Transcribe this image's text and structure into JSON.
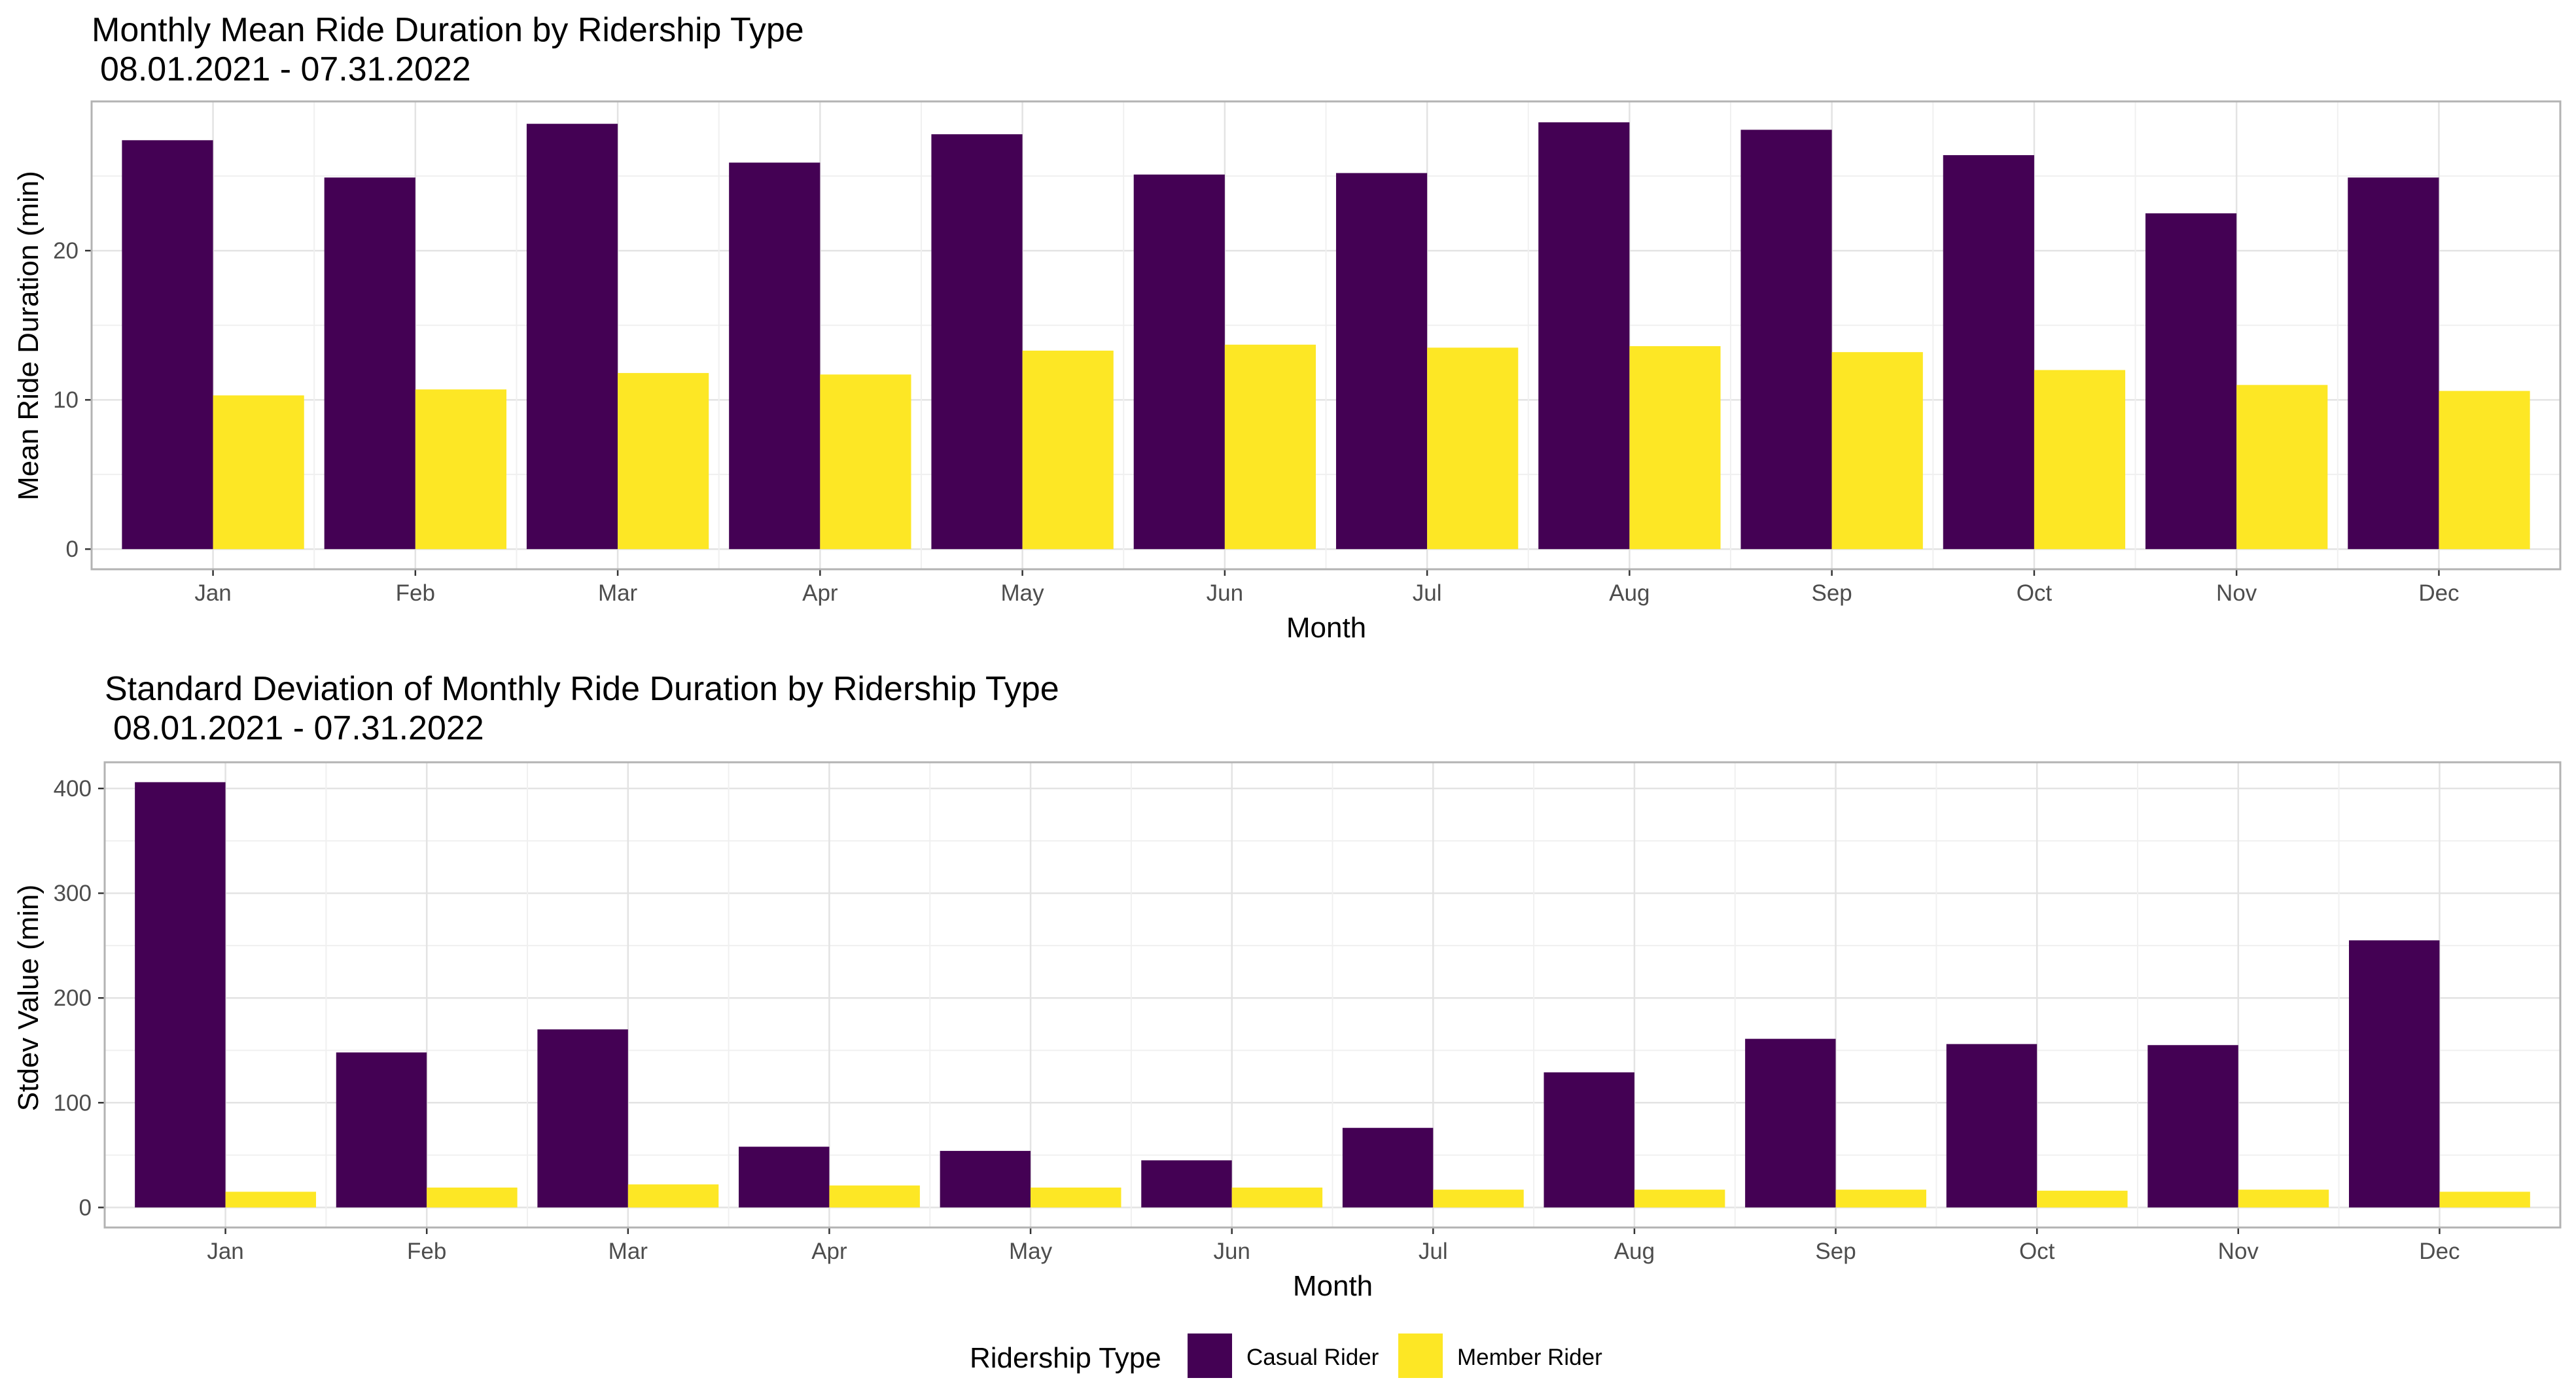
{
  "chart_data": [
    {
      "type": "bar",
      "title": "Monthly Mean Ride Duration by Ridership Type",
      "subtitle": "08.01.2021 - 07.31.2022",
      "xlabel": "Month",
      "ylabel": "Mean Ride Duration (min)",
      "categories": [
        "Jan",
        "Feb",
        "Mar",
        "Apr",
        "May",
        "Jun",
        "Jul",
        "Aug",
        "Sep",
        "Oct",
        "Nov",
        "Dec"
      ],
      "ylim": [
        0,
        30
      ],
      "yticks": [
        0,
        10,
        20
      ],
      "grid": true,
      "series": [
        {
          "name": "Casual Rider",
          "color": "#440154",
          "values": [
            27.4,
            24.9,
            28.5,
            25.9,
            27.8,
            25.1,
            25.2,
            28.6,
            28.1,
            26.4,
            22.5,
            24.9
          ]
        },
        {
          "name": "Member Rider",
          "color": "#FDE725",
          "values": [
            10.3,
            10.7,
            11.8,
            11.7,
            13.3,
            13.7,
            13.5,
            13.6,
            13.2,
            12.0,
            11.0,
            10.6
          ]
        }
      ]
    },
    {
      "type": "bar",
      "title": "Standard Deviation of Monthly Ride Duration by Ridership Type",
      "subtitle": "08.01.2021 - 07.31.2022",
      "xlabel": "Month",
      "ylabel": "Stdev Value (min)",
      "categories": [
        "Jan",
        "Feb",
        "Mar",
        "Apr",
        "May",
        "Jun",
        "Jul",
        "Aug",
        "Sep",
        "Oct",
        "Nov",
        "Dec"
      ],
      "ylim": [
        0,
        425
      ],
      "yticks": [
        0,
        100,
        200,
        300,
        400
      ],
      "grid": true,
      "series": [
        {
          "name": "Casual Rider",
          "color": "#440154",
          "values": [
            406,
            148,
            170,
            58,
            54,
            45,
            76,
            129,
            161,
            156,
            155,
            255
          ]
        },
        {
          "name": "Member Rider",
          "color": "#FDE725",
          "values": [
            15,
            19,
            22,
            21,
            19,
            19,
            17,
            17,
            17,
            16,
            17,
            15
          ]
        }
      ]
    }
  ],
  "legend": {
    "title": "Ridership Type",
    "position": "bottom",
    "items": [
      {
        "label": "Casual Rider",
        "color": "#440154"
      },
      {
        "label": "Member Rider",
        "color": "#FDE725"
      }
    ]
  }
}
